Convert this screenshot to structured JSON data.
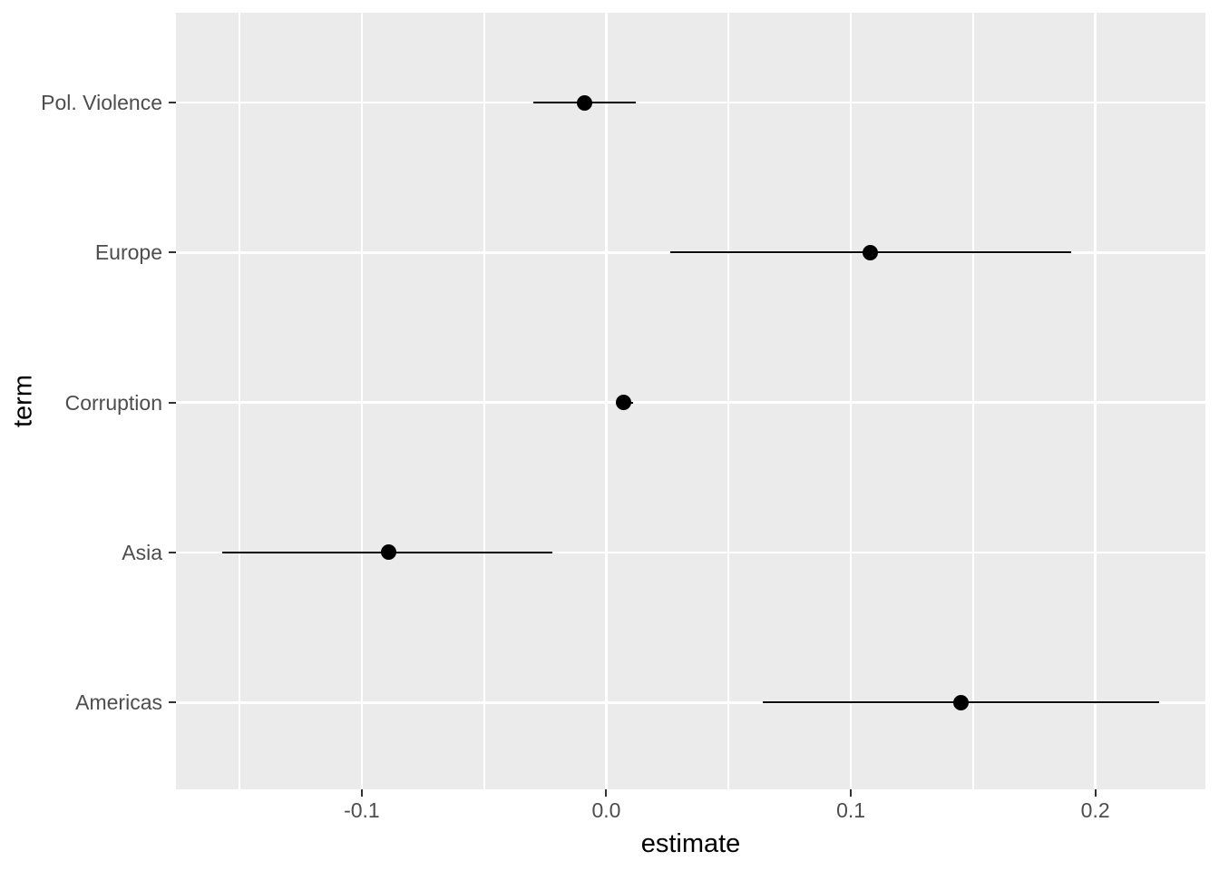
{
  "figure": {
    "kind": "ggplot2-style coefficient plot (point estimates with horizontal confidence-interval bars)",
    "background_color": "#FFFFFF",
    "panel_color": "#EBEBEB",
    "gridline_color": "#FFFFFF",
    "point_color": "#000000",
    "errorbar_color": "#000000",
    "tick_mark_color": "#333333",
    "tick_label_color": "#4D4D4D",
    "axis_title_color": "#000000"
  },
  "chart_data": {
    "type": "scatter",
    "variant": "pointrange",
    "title": "",
    "xlabel": "estimate",
    "ylabel": "term",
    "legend": "none",
    "grid": "white major+minor vertical gridlines and major horizontal gridlines on grey panel",
    "xlim": [
      -0.176,
      0.245
    ],
    "x_major_ticks": [
      -0.1,
      0.0,
      0.1,
      0.2
    ],
    "x_tick_labels": [
      "-0.1",
      "0.0",
      "0.1",
      "0.2"
    ],
    "x_minor_ticks": [
      -0.15,
      -0.05,
      0.05,
      0.15
    ],
    "y_categories_top_to_bottom": [
      "Pol. Violence",
      "Europe",
      "Corruption",
      "Asia",
      "Americas"
    ],
    "rows": [
      {
        "term": "Pol. Violence",
        "estimate": -0.009,
        "ci_low": -0.03,
        "ci_high": 0.012
      },
      {
        "term": "Europe",
        "estimate": 0.108,
        "ci_low": 0.026,
        "ci_high": 0.19
      },
      {
        "term": "Corruption",
        "estimate": 0.007,
        "ci_low": 0.004,
        "ci_high": 0.011
      },
      {
        "term": "Asia",
        "estimate": -0.089,
        "ci_low": -0.157,
        "ci_high": -0.022
      },
      {
        "term": "Americas",
        "estimate": 0.145,
        "ci_low": 0.064,
        "ci_high": 0.226
      }
    ]
  }
}
